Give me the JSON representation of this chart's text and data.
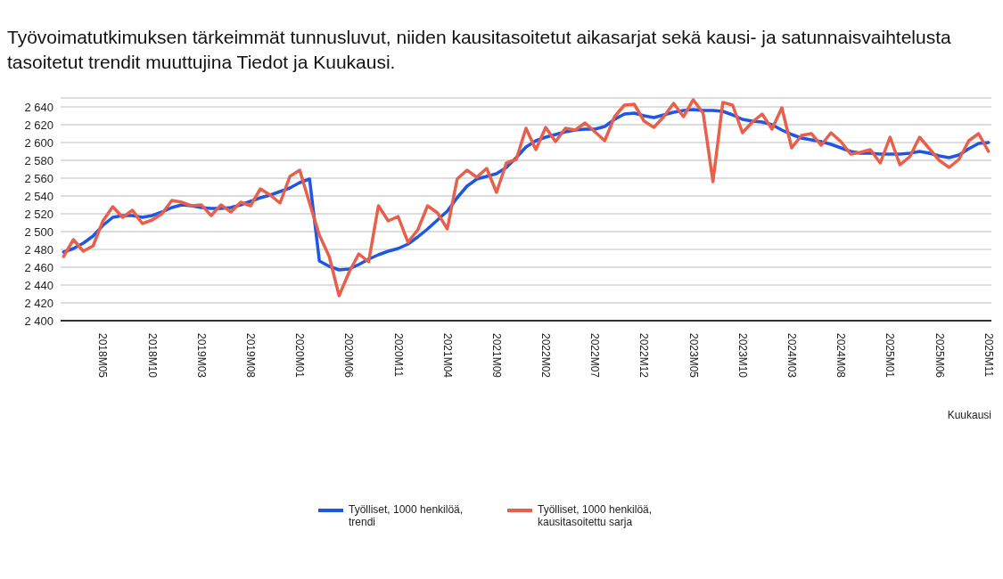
{
  "chart_data": {
    "type": "line",
    "title": "Työvoimatutkimuksen tärkeimmät tunnusluvut, niiden kausitasoitetut aikasarjat sekä kausi- ja satunnaisvaihtelusta tasoitetut trendit muuttujina Tiedot ja Kuukausi.",
    "xlabel": "Kuukausi",
    "categories": [
      null,
      null,
      null,
      null,
      "2018M05",
      null,
      null,
      null,
      null,
      "2018M10",
      null,
      null,
      null,
      null,
      "2019M03",
      null,
      null,
      null,
      null,
      "2019M08",
      null,
      null,
      null,
      null,
      "2020M01",
      null,
      null,
      null,
      null,
      "2020M06",
      null,
      null,
      null,
      null,
      "2020M11",
      null,
      null,
      null,
      null,
      "2021M04",
      null,
      null,
      null,
      null,
      "2021M09",
      null,
      null,
      null,
      null,
      "2022M02",
      null,
      null,
      null,
      null,
      "2022M07",
      null,
      null,
      null,
      null,
      "2022M12",
      null,
      null,
      null,
      null,
      "2023M05",
      null,
      null,
      null,
      null,
      "2023M10",
      null,
      null,
      null,
      null,
      "2024M03",
      null,
      null,
      null,
      null,
      "2024M08",
      null,
      null,
      null,
      null,
      "2025M01",
      null,
      null,
      null,
      null,
      "2025M06",
      null,
      null,
      null,
      null,
      "2025M11"
    ],
    "series": [
      {
        "name": "Työlliset, 1000 henkilöä, trendi",
        "color": "#1f56e6",
        "values": [
          2477,
          2481,
          2487,
          2495,
          2507,
          2516,
          2518,
          2518,
          2516,
          2518,
          2522,
          2527,
          2530,
          2529,
          2527,
          2526,
          2526,
          2527,
          2530,
          2534,
          2538,
          2541,
          2545,
          2549,
          2555,
          2559,
          2467,
          2461,
          2457,
          2458,
          2463,
          2469,
          2474,
          2478,
          2481,
          2486,
          2494,
          2503,
          2513,
          2523,
          2538,
          2551,
          2559,
          2562,
          2565,
          2572,
          2583,
          2595,
          2602,
          2606,
          2609,
          2612,
          2614,
          2615,
          2615,
          2618,
          2626,
          2632,
          2633,
          2630,
          2628,
          2631,
          2634,
          2636,
          2637,
          2636,
          2636,
          2635,
          2631,
          2626,
          2624,
          2623,
          2620,
          2614,
          2609,
          2605,
          2603,
          2601,
          2598,
          2594,
          2590,
          2588,
          2588,
          2587,
          2587,
          2587,
          2588,
          2590,
          2588,
          2585,
          2583,
          2586,
          2593,
          2599,
          2600
        ]
      },
      {
        "name": "Työlliset, 1000 henkilöä, kausitasoitettu sarja",
        "color": "#e8604c",
        "values": [
          2472,
          2491,
          2478,
          2484,
          2512,
          2528,
          2516,
          2524,
          2509,
          2513,
          2520,
          2535,
          2533,
          2529,
          2530,
          2518,
          2530,
          2522,
          2533,
          2529,
          2548,
          2541,
          2532,
          2562,
          2569,
          2532,
          2496,
          2472,
          2428,
          2454,
          2475,
          2466,
          2529,
          2512,
          2517,
          2488,
          2502,
          2529,
          2521,
          2503,
          2559,
          2569,
          2561,
          2571,
          2544,
          2577,
          2581,
          2616,
          2592,
          2617,
          2601,
          2616,
          2614,
          2622,
          2612,
          2602,
          2629,
          2642,
          2643,
          2624,
          2617,
          2629,
          2644,
          2629,
          2648,
          2633,
          2556,
          2645,
          2642,
          2611,
          2623,
          2632,
          2615,
          2639,
          2594,
          2608,
          2610,
          2597,
          2611,
          2601,
          2587,
          2589,
          2592,
          2577,
          2606,
          2575,
          2584,
          2606,
          2593,
          2580,
          2572,
          2581,
          2602,
          2610,
          2590
        ]
      }
    ],
    "ylim": [
      2400,
      2650
    ],
    "yticks": [
      {
        "value": 2400,
        "label": "2 400"
      },
      {
        "value": 2420,
        "label": "2 420"
      },
      {
        "value": 2440,
        "label": "2 440"
      },
      {
        "value": 2460,
        "label": "2 460"
      },
      {
        "value": 2480,
        "label": "2 480"
      },
      {
        "value": 2500,
        "label": "2 500"
      },
      {
        "value": 2520,
        "label": "2 520"
      },
      {
        "value": 2540,
        "label": "2 540"
      },
      {
        "value": 2560,
        "label": "2 560"
      },
      {
        "value": 2580,
        "label": "2 580"
      },
      {
        "value": 2600,
        "label": "2 600"
      },
      {
        "value": 2620,
        "label": "2 620"
      },
      {
        "value": 2640,
        "label": "2 640"
      }
    ],
    "grid": "y",
    "legend": "bottom",
    "marker": "none",
    "line_style": "solid"
  }
}
